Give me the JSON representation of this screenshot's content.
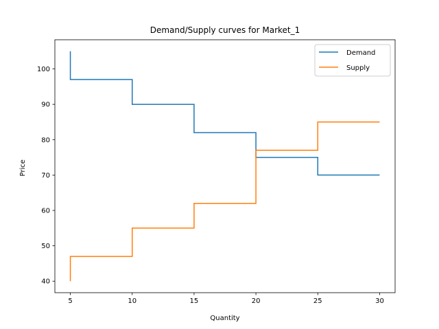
{
  "chart_data": {
    "type": "line",
    "step": "post",
    "title": "Demand/Supply curves for Market_1",
    "xlabel": "Quantity",
    "ylabel": "Price",
    "xlim": [
      3.75,
      31.25
    ],
    "ylim": [
      36.75,
      108.25
    ],
    "xticks": [
      5,
      10,
      15,
      20,
      25,
      30
    ],
    "yticks": [
      40,
      50,
      60,
      70,
      80,
      90,
      100
    ],
    "grid": false,
    "legend": "top-right",
    "series": [
      {
        "name": "Demand",
        "color": "#1f77b4",
        "points": [
          [
            5,
            105
          ],
          [
            5,
            97
          ],
          [
            10,
            97
          ],
          [
            10,
            90
          ],
          [
            15,
            90
          ],
          [
            15,
            82
          ],
          [
            20,
            82
          ],
          [
            20,
            75
          ],
          [
            25,
            75
          ],
          [
            25,
            70
          ],
          [
            30,
            70
          ]
        ]
      },
      {
        "name": "Supply",
        "color": "#ff7f0e",
        "points": [
          [
            5,
            40
          ],
          [
            5,
            47
          ],
          [
            10,
            47
          ],
          [
            10,
            55
          ],
          [
            15,
            55
          ],
          [
            15,
            62
          ],
          [
            20,
            62
          ],
          [
            20,
            77
          ],
          [
            25,
            77
          ],
          [
            25,
            85
          ],
          [
            30,
            85
          ]
        ]
      }
    ]
  }
}
